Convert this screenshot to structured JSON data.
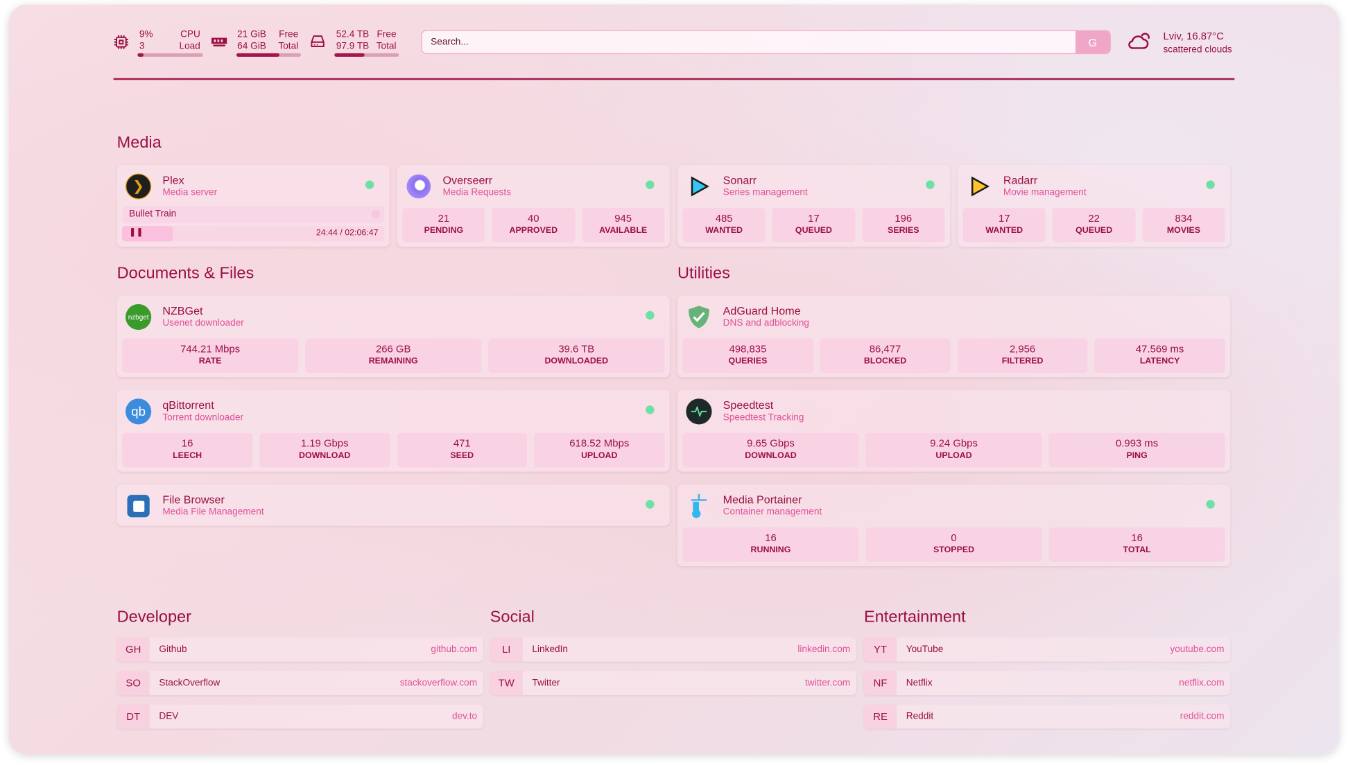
{
  "header": {
    "cpu": {
      "usage": "9%",
      "cores": "3",
      "label1": "CPU",
      "label2": "Load",
      "fill": 0.09
    },
    "memory": {
      "used": "21 GiB",
      "total": "64 GiB",
      "label1": "Free",
      "label2": "Total",
      "fill": 0.67
    },
    "disk": {
      "used": "52.4 TB",
      "total": "97.9 TB",
      "label1": "Free",
      "label2": "Total",
      "fill": 0.46
    },
    "search": {
      "placeholder": "Search...",
      "engine_button": "G"
    },
    "weather": {
      "location_temp": "Lviv, 16.87°C",
      "condition": "scattered clouds",
      "icon": "cloud-sun-icon"
    }
  },
  "colors": {
    "accent": "#9b0f45",
    "secondary": "#e0509a",
    "status_ok": "#6ee0a6"
  },
  "sections": {
    "media": "Media",
    "documents": "Documents & Files",
    "utilities": "Utilities",
    "developer": "Developer",
    "social": "Social",
    "entertainment": "Entertainment"
  },
  "services": {
    "plex": {
      "name": "Plex",
      "desc": "Media server",
      "now_playing": "Bullet Train",
      "time": "24:44 / 02:06:47",
      "progress": 0.195
    },
    "overseerr": {
      "name": "Overseerr",
      "desc": "Media Requests",
      "stats": [
        {
          "v": "21",
          "l": "PENDING"
        },
        {
          "v": "40",
          "l": "APPROVED"
        },
        {
          "v": "945",
          "l": "AVAILABLE"
        }
      ]
    },
    "sonarr": {
      "name": "Sonarr",
      "desc": "Series management",
      "stats": [
        {
          "v": "485",
          "l": "WANTED"
        },
        {
          "v": "17",
          "l": "QUEUED"
        },
        {
          "v": "196",
          "l": "SERIES"
        }
      ]
    },
    "radarr": {
      "name": "Radarr",
      "desc": "Movie management",
      "stats": [
        {
          "v": "17",
          "l": "WANTED"
        },
        {
          "v": "22",
          "l": "QUEUED"
        },
        {
          "v": "834",
          "l": "MOVIES"
        }
      ]
    },
    "nzbget": {
      "name": "NZBGet",
      "desc": "Usenet downloader",
      "icon_text": "nzbget",
      "stats": [
        {
          "v": "744.21 Mbps",
          "l": "RATE"
        },
        {
          "v": "266 GB",
          "l": "REMAINING"
        },
        {
          "v": "39.6 TB",
          "l": "DOWNLOADED"
        }
      ]
    },
    "qbittorrent": {
      "name": "qBittorrent",
      "desc": "Torrent downloader",
      "icon_text": "qb",
      "stats": [
        {
          "v": "16",
          "l": "LEECH"
        },
        {
          "v": "1.19 Gbps",
          "l": "DOWNLOAD"
        },
        {
          "v": "471",
          "l": "SEED"
        },
        {
          "v": "618.52 Mbps",
          "l": "UPLOAD"
        }
      ]
    },
    "filebrowser": {
      "name": "File Browser",
      "desc": "Media File Management"
    },
    "adguard": {
      "name": "AdGuard Home",
      "desc": "DNS and adblocking",
      "stats": [
        {
          "v": "498,835",
          "l": "QUERIES"
        },
        {
          "v": "86,477",
          "l": "BLOCKED"
        },
        {
          "v": "2,956",
          "l": "FILTERED"
        },
        {
          "v": "47.569 ms",
          "l": "LATENCY"
        }
      ]
    },
    "speedtest": {
      "name": "Speedtest",
      "desc": "Speedtest Tracking",
      "stats": [
        {
          "v": "9.65 Gbps",
          "l": "DOWNLOAD"
        },
        {
          "v": "9.24 Gbps",
          "l": "UPLOAD"
        },
        {
          "v": "0.993 ms",
          "l": "PING"
        }
      ]
    },
    "portainer": {
      "name": "Media Portainer",
      "desc": "Container management",
      "stats": [
        {
          "v": "16",
          "l": "RUNNING"
        },
        {
          "v": "0",
          "l": "STOPPED"
        },
        {
          "v": "16",
          "l": "TOTAL"
        }
      ]
    }
  },
  "bookmarks": {
    "developer": [
      {
        "abbr": "GH",
        "name": "Github",
        "url": "github.com"
      },
      {
        "abbr": "SO",
        "name": "StackOverflow",
        "url": "stackoverflow.com"
      },
      {
        "abbr": "DT",
        "name": "DEV",
        "url": "dev.to"
      }
    ],
    "social": [
      {
        "abbr": "LI",
        "name": "LinkedIn",
        "url": "linkedin.com"
      },
      {
        "abbr": "TW",
        "name": "Twitter",
        "url": "twitter.com"
      }
    ],
    "entertainment": [
      {
        "abbr": "YT",
        "name": "YouTube",
        "url": "youtube.com"
      },
      {
        "abbr": "NF",
        "name": "Netflix",
        "url": "netflix.com"
      },
      {
        "abbr": "RE",
        "name": "Reddit",
        "url": "reddit.com"
      }
    ]
  }
}
